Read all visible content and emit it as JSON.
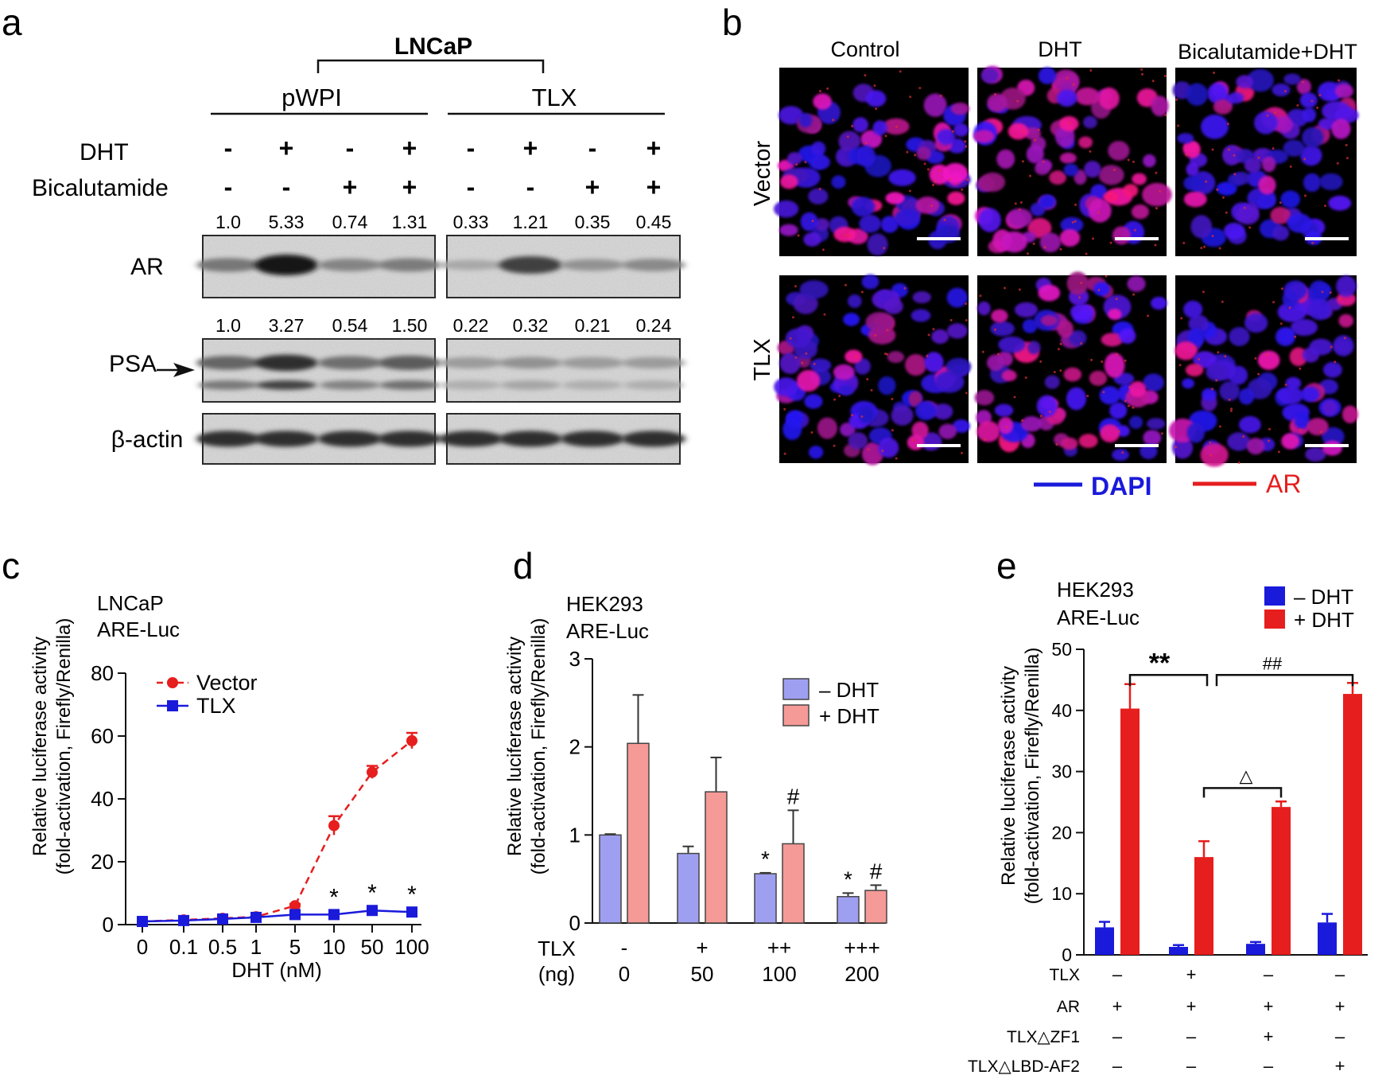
{
  "panel_a": {
    "letter": "a",
    "cell_line": "LNCaP",
    "groups": [
      "pWPI",
      "TLX"
    ],
    "rows": [
      {
        "label": "DHT",
        "values": [
          "-",
          "+",
          "-",
          "+",
          "-",
          "+",
          "-",
          "+"
        ]
      },
      {
        "label": "Bicalutamide",
        "values": [
          "-",
          "-",
          "+",
          "+",
          "-",
          "-",
          "+",
          "+"
        ]
      }
    ],
    "blots": [
      {
        "label": "AR",
        "quant": [
          "1.0",
          "5.33",
          "0.74",
          "1.31",
          "0.33",
          "1.21",
          "0.35",
          "0.45"
        ],
        "intensity": [
          0.45,
          1.0,
          0.38,
          0.42,
          0.18,
          0.75,
          0.3,
          0.35
        ]
      },
      {
        "label": "PSA",
        "quant": [
          "1.0",
          "3.27",
          "0.54",
          "1.50",
          "0.22",
          "0.32",
          "0.21",
          "0.24"
        ],
        "intensity": [
          0.55,
          0.85,
          0.5,
          0.6,
          0.25,
          0.3,
          0.25,
          0.25
        ]
      },
      {
        "label": "β-actin",
        "quant": [],
        "intensity": [
          0.85,
          0.85,
          0.85,
          0.85,
          0.85,
          0.85,
          0.85,
          0.85
        ]
      }
    ]
  },
  "panel_b": {
    "letter": "b",
    "columns": [
      "Control",
      "DHT",
      "Bicalutamide+DHT"
    ],
    "rows": [
      "Vector",
      "TLX"
    ],
    "legend": [
      {
        "label": "DAPI",
        "color": "#1a1adb"
      },
      {
        "label": "AR",
        "color": "#e61e1e"
      }
    ]
  },
  "chart_data": [
    {
      "id": "c",
      "letter": "c",
      "type": "line",
      "annotation": [
        "LNCaP",
        "ARE-Luc"
      ],
      "xlabel": "DHT (nM)",
      "ylabel": [
        "Relative luciferase activity",
        "(fold-activation, Firefly/Renilla)"
      ],
      "categories": [
        "0",
        "0.1",
        "0.5",
        "1",
        "5",
        "10",
        "50",
        "100"
      ],
      "ylim": [
        0,
        80
      ],
      "yticks": [
        0,
        20,
        40,
        60,
        80
      ],
      "series": [
        {
          "name": "Vector",
          "color": "#e61e1e",
          "dashed": true,
          "marker": "circle",
          "values": [
            1,
            1.5,
            2,
            2.5,
            6,
            31.5,
            48.5,
            58.5
          ],
          "errors": [
            0.3,
            0.3,
            0.3,
            0.3,
            0.6,
            3,
            2,
            2.5
          ]
        },
        {
          "name": "TLX",
          "color": "#1a1adb",
          "dashed": false,
          "marker": "square",
          "values": [
            1,
            1.3,
            1.8,
            2.3,
            3.2,
            3.2,
            4.5,
            4.0
          ],
          "errors": [
            0.2,
            0.2,
            0.2,
            0.3,
            0.4,
            0.4,
            0.5,
            0.5
          ]
        }
      ],
      "significance": [
        {
          "index": 5,
          "label": "*"
        },
        {
          "index": 6,
          "label": "*"
        },
        {
          "index": 7,
          "label": "*"
        }
      ]
    },
    {
      "id": "d",
      "letter": "d",
      "type": "bar",
      "annotation": [
        "HEK293",
        "ARE-Luc"
      ],
      "ylabel": [
        "Relative luciferase activity",
        "(fold-activation, Firefly/Renilla)"
      ],
      "ylim": [
        0,
        3
      ],
      "yticks": [
        0,
        1,
        2,
        3
      ],
      "row_labels": [
        "TLX",
        "(ng)"
      ],
      "categories": [
        [
          "-",
          "0"
        ],
        [
          "+",
          "50"
        ],
        [
          "++",
          "100"
        ],
        [
          "+++",
          "200"
        ]
      ],
      "series": [
        {
          "name": "– DHT",
          "color": "#9f9ff2",
          "values": [
            1.0,
            0.79,
            0.56,
            0.3
          ],
          "errors": [
            0.01,
            0.08,
            0.01,
            0.04
          ]
        },
        {
          "name": "+ DHT",
          "color": "#f59a96",
          "values": [
            2.04,
            1.49,
            0.9,
            0.37
          ],
          "errors": [
            0.55,
            0.39,
            0.38,
            0.06
          ]
        }
      ],
      "significance": [
        {
          "category": 2,
          "series": 0,
          "label": "*"
        },
        {
          "category": 3,
          "series": 0,
          "label": "*"
        },
        {
          "category": 2,
          "series": 1,
          "label": "#"
        },
        {
          "category": 3,
          "series": 1,
          "label": "#"
        }
      ]
    },
    {
      "id": "e",
      "letter": "e",
      "type": "bar",
      "annotation": [
        "HEK293",
        "ARE-Luc"
      ],
      "ylabel": [
        "Relative luciferase activity",
        "(fold-activation, Firefly/Renilla)"
      ],
      "ylim": [
        0,
        50
      ],
      "yticks": [
        0,
        10,
        20,
        30,
        40,
        50
      ],
      "series": [
        {
          "name": "– DHT",
          "color": "#1a1adb",
          "values": [
            4.5,
            1.3,
            1.8,
            5.3
          ],
          "errors": [
            0.9,
            0.3,
            0.3,
            1.4
          ]
        },
        {
          "name": "+ DHT",
          "color": "#e61e1e",
          "values": [
            40.3,
            16.0,
            24.2,
            42.7
          ],
          "errors": [
            4.0,
            2.6,
            0.9,
            1.8
          ]
        }
      ],
      "condition_rows": [
        {
          "label": "TLX",
          "values": [
            "–",
            "+",
            "–",
            "–"
          ]
        },
        {
          "label": "AR",
          "values": [
            "+",
            "+",
            "+",
            "+"
          ]
        },
        {
          "label": "TLX△ZF1",
          "values": [
            "–",
            "–",
            "+",
            "–"
          ]
        },
        {
          "label": "TLX△LBD-AF2",
          "values": [
            "–",
            "–",
            "–",
            "+"
          ]
        }
      ],
      "brackets": [
        {
          "from": 0,
          "to": 1,
          "label": "**"
        },
        {
          "from": 1,
          "to": 3,
          "label": "##"
        },
        {
          "from": 1,
          "to": 2,
          "label": "△"
        }
      ]
    }
  ]
}
